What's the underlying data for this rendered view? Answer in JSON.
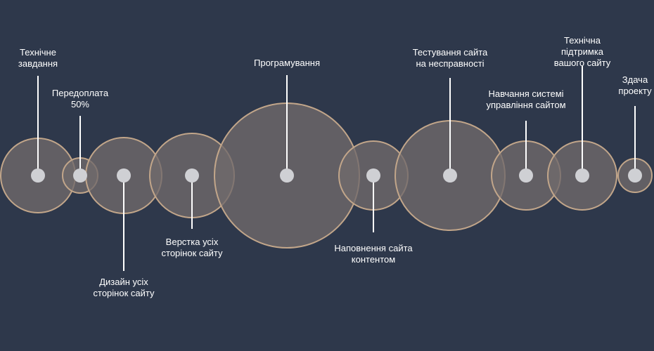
{
  "colors": {
    "background": "#2e384b",
    "circle_fill": "#716a6c",
    "circle_stroke": "#c2a68a",
    "dot": "#cfd0d4",
    "connector": "#ffffff",
    "label_text": "#ffffff"
  },
  "steps": [
    {
      "label": "Технічне\nзавдання",
      "size": "large"
    },
    {
      "label": "Передоплата\n50%",
      "size": "small"
    },
    {
      "label": "Дизайн усіх\nсторінок сайту",
      "size": "large"
    },
    {
      "label": "Верстка усіх\nсторінок сайту",
      "size": "large"
    },
    {
      "label": "Програмування",
      "size": "largest"
    },
    {
      "label": "Наповнення сайта\nконтентом",
      "size": "medium"
    },
    {
      "label": "Тестування сайта\nна несправності",
      "size": "extra-large"
    },
    {
      "label": "Навчання системі\nуправління сайтом",
      "size": "medium"
    },
    {
      "label": "Технічна підтримка\nвашого сайту",
      "size": "medium"
    },
    {
      "label": "Здача\nпроекту",
      "size": "small"
    }
  ]
}
